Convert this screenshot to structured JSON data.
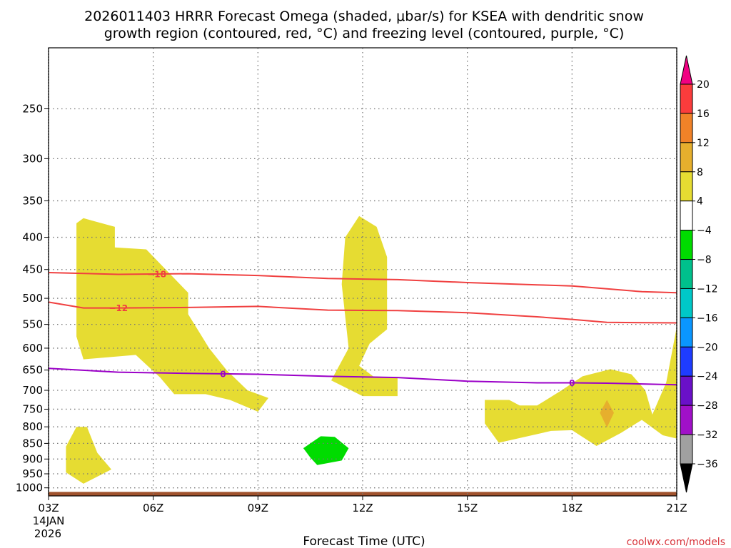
{
  "chart_data": {
    "type": "contour",
    "title_line1": "2026011403 HRRR Forecast Omega (shaded, μbar/s) for KSEA with dendritic snow",
    "title_line2": "growth region (contoured, red, °C) and freezing level (contoured, purple, °C)",
    "xlabel": "Forecast Time (UTC)",
    "ylabel": "",
    "credit": "coolwx.com/models",
    "x_ticks": [
      {
        "hour": 0,
        "label": "03Z",
        "sub1": "14JAN",
        "sub2": "2026"
      },
      {
        "hour": 3,
        "label": "06Z"
      },
      {
        "hour": 6,
        "label": "09Z"
      },
      {
        "hour": 9,
        "label": "12Z"
      },
      {
        "hour": 12,
        "label": "15Z"
      },
      {
        "hour": 15,
        "label": "18Z"
      },
      {
        "hour": 18,
        "label": "21Z"
      }
    ],
    "xlim": [
      0,
      18
    ],
    "y_ticks": [
      250,
      300,
      350,
      400,
      450,
      500,
      550,
      600,
      650,
      700,
      750,
      800,
      850,
      900,
      950,
      1000
    ],
    "y_units": "hPa",
    "ylim": [
      1030,
      200
    ],
    "y_scale": "log",
    "grid": true,
    "colorbar": {
      "levels": [
        -36,
        -32,
        -28,
        -24,
        -20,
        -16,
        -12,
        -8,
        -4,
        4,
        8,
        12,
        16,
        20
      ],
      "bins": [
        {
          "from": -40,
          "to": -36,
          "color": "#000000"
        },
        {
          "from": -36,
          "to": -32,
          "color": "#a0a0a0"
        },
        {
          "from": -32,
          "to": -28,
          "color": "#a010c8"
        },
        {
          "from": -28,
          "to": -24,
          "color": "#6a10c8"
        },
        {
          "from": -24,
          "to": -20,
          "color": "#1e3cff"
        },
        {
          "from": -20,
          "to": -16,
          "color": "#0a96ff"
        },
        {
          "from": -16,
          "to": -12,
          "color": "#00c8c8"
        },
        {
          "from": -12,
          "to": -8,
          "color": "#00c08c"
        },
        {
          "from": -8,
          "to": -4,
          "color": "#00dc00"
        },
        {
          "from": -4,
          "to": 4,
          "color": "#ffffff"
        },
        {
          "from": 4,
          "to": 8,
          "color": "#e6dc32"
        },
        {
          "from": 8,
          "to": 12,
          "color": "#e6af2d"
        },
        {
          "from": 12,
          "to": 16,
          "color": "#f08228"
        },
        {
          "from": 16,
          "to": 20,
          "color": "#fa3c3c"
        },
        {
          "from": 20,
          "to": 24,
          "color": "#f00082"
        }
      ]
    },
    "shaded_regions": [
      {
        "value_range": [
          4,
          8
        ],
        "color": "#e6dc32",
        "points": [
          [
            0.8,
            380
          ],
          [
            1.0,
            373
          ],
          [
            1.9,
            385
          ],
          [
            1.9,
            415
          ],
          [
            2.8,
            418
          ],
          [
            4.0,
            490
          ],
          [
            4.0,
            530
          ],
          [
            4.6,
            600
          ],
          [
            5.1,
            650
          ],
          [
            5.7,
            700
          ],
          [
            6.3,
            720
          ],
          [
            6.0,
            757
          ],
          [
            5.2,
            725
          ],
          [
            4.5,
            710
          ],
          [
            3.6,
            710
          ],
          [
            3.2,
            668
          ],
          [
            2.5,
            615
          ],
          [
            1.0,
            625
          ],
          [
            0.8,
            575
          ]
        ]
      },
      {
        "value_range": [
          4,
          8
        ],
        "color": "#e6dc32",
        "points": [
          [
            8.9,
            370
          ],
          [
            9.4,
            385
          ],
          [
            9.7,
            430
          ],
          [
            9.7,
            560
          ],
          [
            9.2,
            590
          ],
          [
            8.9,
            640
          ],
          [
            9.3,
            665
          ],
          [
            10.0,
            668
          ],
          [
            10.0,
            715
          ],
          [
            9.0,
            715
          ],
          [
            8.1,
            675
          ],
          [
            8.6,
            600
          ],
          [
            8.4,
            475
          ],
          [
            8.5,
            400
          ]
        ]
      },
      {
        "value_range": [
          4,
          8
        ],
        "color": "#e6dc32",
        "points": [
          [
            12.5,
            725
          ],
          [
            13.2,
            725
          ],
          [
            13.5,
            740
          ],
          [
            14.0,
            740
          ],
          [
            14.7,
            700
          ],
          [
            15.3,
            665
          ],
          [
            16.1,
            648
          ],
          [
            16.7,
            660
          ],
          [
            17.1,
            700
          ],
          [
            17.3,
            765
          ],
          [
            17.7,
            680
          ],
          [
            18.0,
            555
          ],
          [
            18.0,
            835
          ],
          [
            17.6,
            825
          ],
          [
            17.0,
            780
          ],
          [
            16.4,
            818
          ],
          [
            15.7,
            858
          ],
          [
            15.0,
            810
          ],
          [
            14.4,
            812
          ],
          [
            12.9,
            848
          ],
          [
            12.5,
            790
          ]
        ]
      },
      {
        "value_range": [
          4,
          8
        ],
        "color": "#e6dc32",
        "points": [
          [
            0.5,
            860
          ],
          [
            0.8,
            800
          ],
          [
            1.1,
            800
          ],
          [
            1.4,
            880
          ],
          [
            1.8,
            935
          ],
          [
            1.0,
            985
          ],
          [
            0.5,
            945
          ]
        ]
      },
      {
        "value_range": [
          8,
          12
        ],
        "color": "#e6af2d",
        "points": [
          [
            16.0,
            725
          ],
          [
            16.2,
            760
          ],
          [
            16.0,
            802
          ],
          [
            15.8,
            760
          ]
        ]
      },
      {
        "value_range": [
          -8,
          -4
        ],
        "color": "#00dc00",
        "points": [
          [
            7.3,
            865
          ],
          [
            7.8,
            828
          ],
          [
            8.2,
            830
          ],
          [
            8.6,
            865
          ],
          [
            8.4,
            905
          ],
          [
            7.7,
            920
          ],
          [
            7.5,
            895
          ]
        ]
      }
    ],
    "terrain": {
      "surface_pressure": 1015,
      "color": "#a0522d"
    },
    "series": [
      {
        "name": "-18",
        "color": "#f04040",
        "width": 2,
        "label_at": 3.1,
        "points": [
          [
            0,
            455
          ],
          [
            2,
            458
          ],
          [
            4,
            457
          ],
          [
            6,
            460
          ],
          [
            8,
            465
          ],
          [
            10,
            467
          ],
          [
            12,
            472
          ],
          [
            14,
            476
          ],
          [
            15,
            478
          ],
          [
            16,
            483
          ],
          [
            17,
            488
          ],
          [
            18,
            490
          ]
        ]
      },
      {
        "name": "-12",
        "color": "#f04040",
        "width": 2,
        "label_at": 2.0,
        "points": [
          [
            0,
            507
          ],
          [
            1,
            518
          ],
          [
            2,
            518
          ],
          [
            4,
            517
          ],
          [
            6,
            515
          ],
          [
            8,
            522
          ],
          [
            10,
            523
          ],
          [
            12,
            527
          ],
          [
            14,
            535
          ],
          [
            15,
            540
          ],
          [
            16,
            546
          ],
          [
            18,
            547
          ]
        ]
      },
      {
        "name": "0",
        "color": "#9b00c8",
        "width": 2,
        "label_at": 5.0,
        "points": [
          [
            0,
            646
          ],
          [
            2,
            655
          ],
          [
            4,
            658
          ],
          [
            6,
            660
          ],
          [
            8,
            665
          ],
          [
            10,
            668
          ],
          [
            12,
            677
          ],
          [
            14,
            681
          ],
          [
            15,
            681
          ],
          [
            16,
            682
          ],
          [
            18,
            686
          ]
        ]
      },
      {
        "name": "0",
        "color": "#9b00c8",
        "width": 2,
        "label_at": 15.0,
        "points": []
      }
    ]
  }
}
